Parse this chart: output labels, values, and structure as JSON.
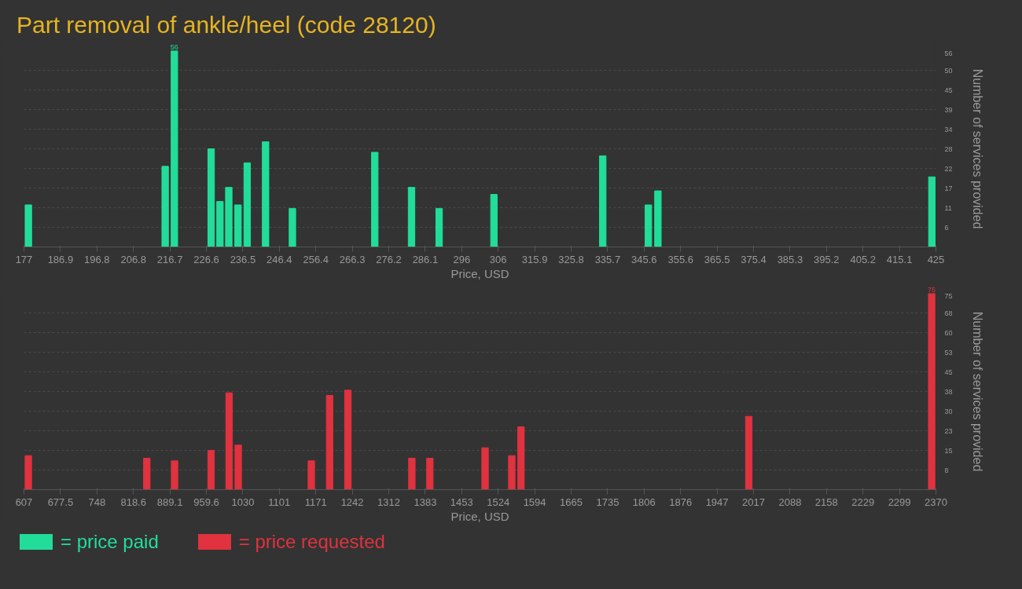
{
  "chart_data": [
    {
      "type": "bar",
      "title": "Part removal of ankle/heel (code 28120)",
      "xlabel": "Price, USD",
      "ylabel": "Number of services provided",
      "grid": "y",
      "legend": "bottom",
      "x": [
        178.2,
        215.4,
        217.9,
        227.9,
        230.3,
        232.7,
        235.2,
        237.7,
        242.7,
        250.0,
        272.4,
        282.4,
        289.9,
        304.8,
        334.4,
        346.8,
        349.4,
        423.9
      ],
      "series": [
        {
          "name": "= price paid",
          "color": "#22dd9a",
          "values": [
            12,
            23,
            56,
            28,
            13,
            17,
            12,
            24,
            30,
            11,
            27,
            17,
            11,
            15,
            26,
            12,
            16,
            20
          ],
          "value_labels": [
            null,
            null,
            "56",
            null,
            null,
            null,
            null,
            null,
            null,
            null,
            null,
            null,
            null,
            null,
            null,
            null,
            null,
            null
          ]
        }
      ],
      "xlim": [
        177,
        425
      ],
      "xticks": [
        177,
        {
          "value": 186.92,
          "label": "186.9"
        },
        {
          "value": 196.84,
          "label": "196.8"
        },
        {
          "value": 206.76,
          "label": "206.8"
        },
        {
          "value": 216.68,
          "label": "216.7"
        },
        226.6,
        {
          "value": 236.52,
          "label": "236.5"
        },
        {
          "value": 246.44,
          "label": "246.4"
        },
        {
          "value": 256.36,
          "label": "256.4"
        },
        {
          "value": 266.28,
          "label": "266.3"
        },
        276.2,
        {
          "value": 286.12,
          "label": "286.1"
        },
        {
          "value": 296.04,
          "label": "296"
        },
        {
          "value": 305.96,
          "label": "306"
        },
        {
          "value": 315.88,
          "label": "315.9"
        },
        325.8,
        {
          "value": 335.72,
          "label": "335.7"
        },
        {
          "value": 345.64,
          "label": "345.6"
        },
        {
          "value": 355.56,
          "label": "355.6"
        },
        {
          "value": 365.48,
          "label": "365.5"
        },
        375.4,
        {
          "value": 385.32,
          "label": "385.3"
        },
        {
          "value": 395.24,
          "label": "395.2"
        },
        {
          "value": 405.16,
          "label": "405.2"
        },
        {
          "value": 415.08,
          "label": "415.1"
        },
        425
      ],
      "ylim": [
        0,
        56
      ],
      "yticks": [
        {
          "value": 5.6,
          "label": "6"
        },
        {
          "value": 11.2,
          "label": "11"
        },
        {
          "value": 16.8,
          "label": "17"
        },
        {
          "value": 22.4,
          "label": "22"
        },
        {
          "value": 28,
          "label": "28"
        },
        {
          "value": 33.6,
          "label": "34"
        },
        {
          "value": 39.2,
          "label": "39"
        },
        {
          "value": 44.8,
          "label": "45"
        },
        {
          "value": 50.4,
          "label": "50"
        },
        {
          "value": 56,
          "label": "56"
        }
      ]
    },
    {
      "type": "bar",
      "xlabel": "Price, USD",
      "ylabel": "Number of services provided",
      "grid": "y",
      "legend": "bottom",
      "x": [
        615.4,
        844.5,
        898.1,
        968.7,
        1003.6,
        1021.2,
        1162.5,
        1197.9,
        1233.3,
        1356.9,
        1391.7,
        1498.4,
        1550.0,
        1567.9,
        2008.3,
        2361.8
      ],
      "series": [
        {
          "name": "= price requested",
          "color": "#e0323f",
          "values": [
            13,
            12,
            11,
            15,
            37,
            17,
            11,
            36,
            38,
            12,
            12,
            16,
            13,
            24,
            28,
            75
          ],
          "value_labels": [
            null,
            null,
            null,
            null,
            null,
            null,
            null,
            null,
            null,
            null,
            null,
            null,
            null,
            null,
            null,
            "75"
          ]
        }
      ],
      "xlim": [
        607,
        2370
      ],
      "xticks": [
        607,
        {
          "value": 677.52,
          "label": "677.5"
        },
        {
          "value": 748.04,
          "label": "748"
        },
        {
          "value": 818.56,
          "label": "818.6"
        },
        {
          "value": 889.08,
          "label": "889.1"
        },
        959.6,
        {
          "value": 1030.12,
          "label": "1030"
        },
        {
          "value": 1100.64,
          "label": "1101"
        },
        {
          "value": 1171.16,
          "label": "1171"
        },
        {
          "value": 1241.68,
          "label": "1242"
        },
        {
          "value": 1312.2,
          "label": "1312"
        },
        {
          "value": 1382.72,
          "label": "1383"
        },
        {
          "value": 1453.24,
          "label": "1453"
        },
        {
          "value": 1523.76,
          "label": "1524"
        },
        {
          "value": 1594.28,
          "label": "1594"
        },
        {
          "value": 1664.8,
          "label": "1665"
        },
        {
          "value": 1735.32,
          "label": "1735"
        },
        {
          "value": 1805.84,
          "label": "1806"
        },
        {
          "value": 1876.36,
          "label": "1876"
        },
        {
          "value": 1946.88,
          "label": "1947"
        },
        {
          "value": 2017.4,
          "label": "2017"
        },
        {
          "value": 2087.92,
          "label": "2088"
        },
        {
          "value": 2158.44,
          "label": "2158"
        },
        {
          "value": 2228.96,
          "label": "2229"
        },
        {
          "value": 2299.48,
          "label": "2299"
        },
        2370
      ],
      "ylim": [
        0,
        75
      ],
      "yticks": [
        {
          "value": 7.5,
          "label": "8"
        },
        {
          "value": 15,
          "label": "15"
        },
        {
          "value": 22.5,
          "label": "23"
        },
        {
          "value": 30,
          "label": "30"
        },
        {
          "value": 37.5,
          "label": "38"
        },
        {
          "value": 45,
          "label": "45"
        },
        {
          "value": 52.5,
          "label": "53"
        },
        {
          "value": 60,
          "label": "60"
        },
        {
          "value": 67.5,
          "label": "68"
        },
        {
          "value": 75,
          "label": "75"
        }
      ]
    }
  ]
}
